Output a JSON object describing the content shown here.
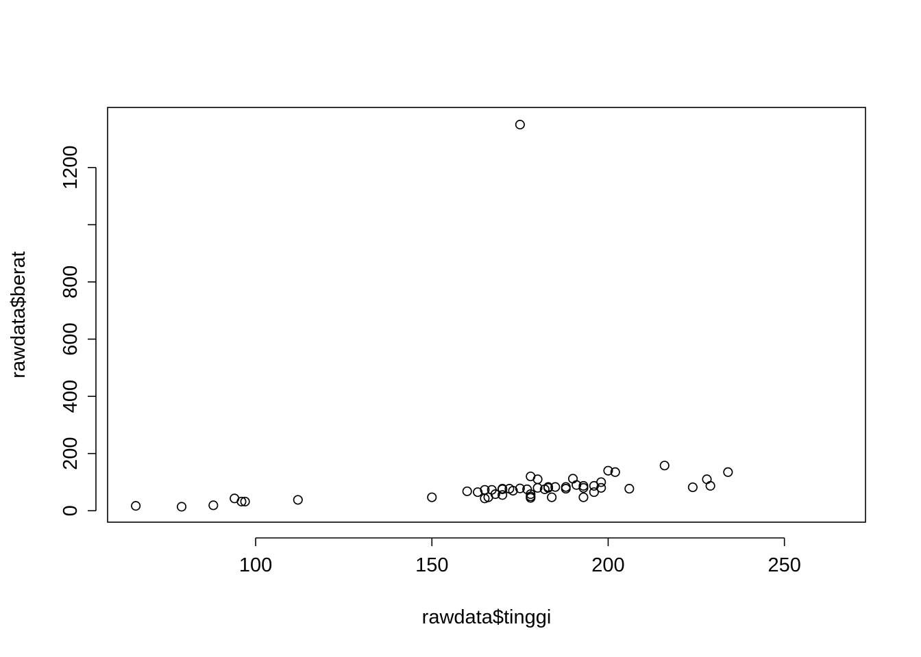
{
  "chart_data": {
    "type": "scatter",
    "title": "",
    "xlabel": "rawdata$tinggi",
    "ylabel": "rawdata$berat",
    "xlim": [
      58,
      273
    ],
    "ylim": [
      -40,
      1410
    ],
    "x_ticks": [
      100,
      150,
      200,
      250
    ],
    "y_ticks": [
      0,
      200,
      400,
      600,
      800,
      1000,
      1200
    ],
    "x_tick_labels": [
      "100",
      "150",
      "200",
      "250"
    ],
    "y_tick_labels": [
      "0",
      "200",
      "400",
      "600",
      "800",
      "",
      "1200"
    ],
    "grid": false,
    "legend": "none",
    "marker": "open-circle",
    "colors": {
      "points": "#000000",
      "axes": "#000000",
      "background": "#ffffff"
    },
    "series": [
      {
        "x": [
          66,
          79,
          88,
          94,
          96,
          97,
          112,
          150,
          160,
          163,
          165,
          165,
          166,
          167,
          168,
          170,
          170,
          170,
          172,
          173,
          175,
          175,
          177,
          178,
          178,
          178,
          178,
          180,
          180,
          182,
          183,
          183,
          184,
          185,
          188,
          188,
          190,
          191,
          193,
          193,
          193,
          196,
          196,
          198,
          198,
          200,
          202,
          206,
          216,
          224,
          228,
          229,
          234
        ],
        "y": [
          17,
          14,
          19,
          43,
          32,
          32,
          38,
          47,
          68,
          65,
          73,
          43,
          47,
          73,
          58,
          75,
          55,
          77,
          77,
          70,
          1350,
          78,
          75,
          120,
          58,
          45,
          50,
          110,
          80,
          75,
          83,
          80,
          47,
          83,
          77,
          83,
          112,
          90,
          87,
          80,
          47,
          65,
          87,
          80,
          100,
          140,
          135,
          77,
          158,
          82,
          110,
          87,
          135
        ]
      }
    ]
  }
}
